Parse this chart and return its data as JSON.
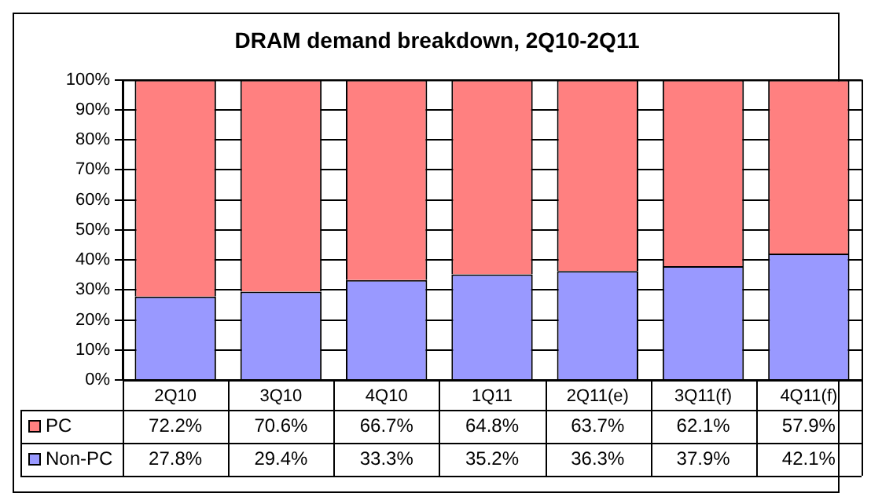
{
  "chart_data": {
    "type": "bar",
    "title": "DRAM demand breakdown, 2Q10-2Q11",
    "categories": [
      "2Q10",
      "3Q10",
      "4Q10",
      "1Q11",
      "2Q11(e)",
      "3Q11(f)",
      "4Q11(f)"
    ],
    "stacked": true,
    "series": [
      {
        "name": "Non-PC",
        "color": "#9999ff",
        "values": [
          27.8,
          29.4,
          33.3,
          35.2,
          36.3,
          37.9,
          42.1
        ],
        "value_labels": [
          "27.8%",
          "29.4%",
          "33.3%",
          "35.2%",
          "36.3%",
          "37.9%",
          "42.1%"
        ]
      },
      {
        "name": "PC",
        "color": "#ff8080",
        "values": [
          72.2,
          70.6,
          66.7,
          64.8,
          63.7,
          62.1,
          57.9
        ],
        "value_labels": [
          "72.2%",
          "70.6%",
          "66.7%",
          "64.8%",
          "63.7%",
          "62.1%",
          "57.9%"
        ]
      }
    ],
    "ylim": [
      0,
      100
    ],
    "yticks": [
      {
        "value": 0,
        "label": "0%"
      },
      {
        "value": 10,
        "label": "10%"
      },
      {
        "value": 20,
        "label": "20%"
      },
      {
        "value": 30,
        "label": "30%"
      },
      {
        "value": 40,
        "label": "40%"
      },
      {
        "value": 50,
        "label": "50%"
      },
      {
        "value": 60,
        "label": "60%"
      },
      {
        "value": 70,
        "label": "70%"
      },
      {
        "value": 80,
        "label": "80%"
      },
      {
        "value": 90,
        "label": "90%"
      },
      {
        "value": 100,
        "label": "100%"
      }
    ],
    "grid": "y",
    "legend": "bottom"
  }
}
